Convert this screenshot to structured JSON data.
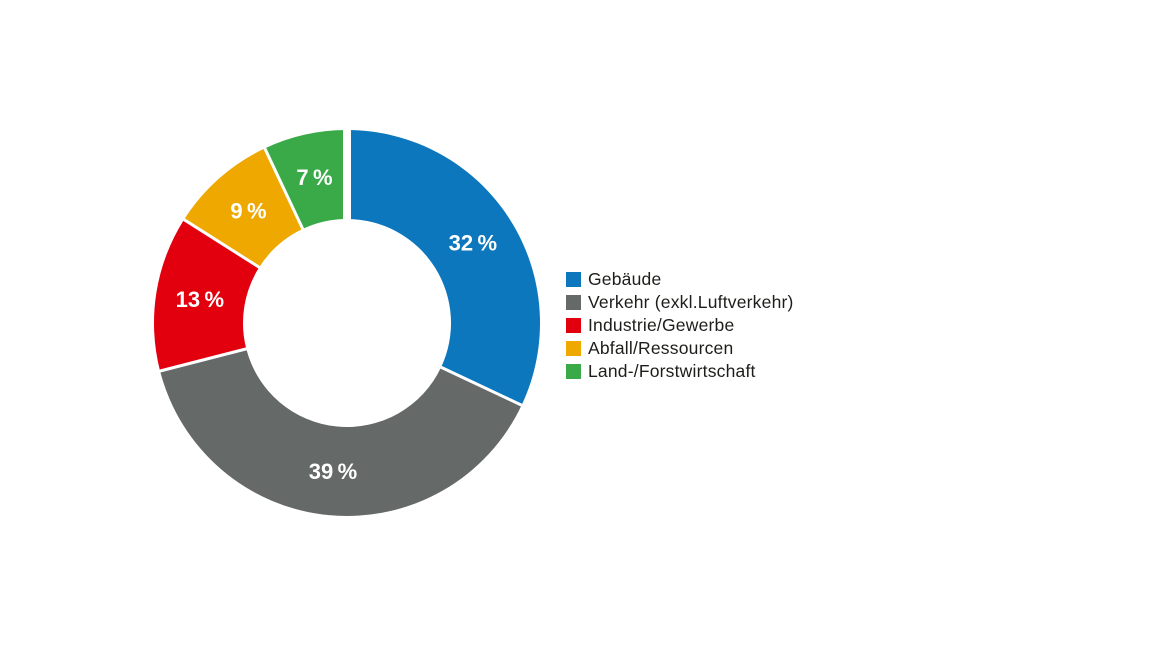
{
  "chart_data": {
    "type": "pie",
    "subtype": "donut",
    "title": "",
    "direction": "clockwise",
    "start_angle_deg": 0,
    "legend_position": "right",
    "background_color": "#ffffff",
    "value_label_color": "#ffffff",
    "legend_text_color": "#1d1d1b",
    "separator_color": "#ffffff",
    "slices": [
      {
        "label": "Gebäude",
        "value": 32,
        "display": "32 %",
        "color": "#0d77bd"
      },
      {
        "label": "Verkehr (exkl.Luftverkehr)",
        "value": 39,
        "display": "39 %",
        "color": "#656968"
      },
      {
        "label": "Industrie/Gewerbe",
        "value": 13,
        "display": "13 %",
        "color": "#e3000e"
      },
      {
        "label": "Abfall/Ressourcen",
        "value": 9,
        "display": "9 %",
        "color": "#eea800"
      },
      {
        "label": "Land-/Forstwirtschaft",
        "value": 7,
        "display": "7 %",
        "color": "#3aaa49"
      }
    ]
  }
}
